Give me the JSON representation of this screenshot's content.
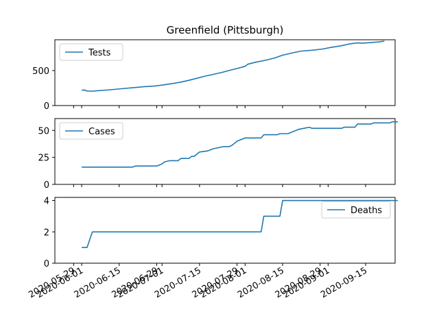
{
  "chart_data": {
    "type": "line",
    "title": "Greenfield (Pittsburgh)",
    "x_axis": {
      "type": "date",
      "range": [
        "2020-05-22",
        "2020-09-26"
      ],
      "tick_labels": [
        "2020-05-29",
        "2020-06-01",
        "2020-06-15",
        "2020-06-29",
        "2020-07-01",
        "2020-07-15",
        "2020-07-29",
        "2020-08-01",
        "2020-08-15",
        "2020-08-29",
        "2020-09-01",
        "2020-09-15"
      ]
    },
    "line_color": "#1f77b4",
    "panels": [
      {
        "ylim": [
          0,
          940
        ],
        "yticks": [
          0,
          500
        ],
        "legend_position": "top-left",
        "series": [
          {
            "name": "Tests",
            "points": [
              [
                "2020-06-01",
                220
              ],
              [
                "2020-06-02",
                222
              ],
              [
                "2020-06-03",
                208
              ],
              [
                "2020-06-05",
                206
              ],
              [
                "2020-06-07",
                212
              ],
              [
                "2020-06-10",
                220
              ],
              [
                "2020-06-13",
                230
              ],
              [
                "2020-06-17",
                245
              ],
              [
                "2020-06-21",
                258
              ],
              [
                "2020-06-24",
                268
              ],
              [
                "2020-06-28",
                278
              ],
              [
                "2020-07-01",
                292
              ],
              [
                "2020-07-05",
                315
              ],
              [
                "2020-07-08",
                335
              ],
              [
                "2020-07-11",
                360
              ],
              [
                "2020-07-14",
                390
              ],
              [
                "2020-07-17",
                420
              ],
              [
                "2020-07-20",
                445
              ],
              [
                "2020-07-23",
                470
              ],
              [
                "2020-07-26",
                500
              ],
              [
                "2020-07-29",
                530
              ],
              [
                "2020-08-01",
                560
              ],
              [
                "2020-08-02",
                590
              ],
              [
                "2020-08-05",
                620
              ],
              [
                "2020-08-09",
                650
              ],
              [
                "2020-08-12",
                680
              ],
              [
                "2020-08-15",
                720
              ],
              [
                "2020-08-19",
                755
              ],
              [
                "2020-08-22",
                778
              ],
              [
                "2020-08-26",
                790
              ],
              [
                "2020-08-30",
                808
              ],
              [
                "2020-09-02",
                830
              ],
              [
                "2020-09-06",
                855
              ],
              [
                "2020-09-09",
                880
              ],
              [
                "2020-09-12",
                895
              ],
              [
                "2020-09-14",
                892
              ],
              [
                "2020-09-17",
                900
              ],
              [
                "2020-09-20",
                910
              ],
              [
                "2020-09-22",
                920
              ]
            ]
          }
        ]
      },
      {
        "ylim": [
          0,
          61
        ],
        "yticks": [
          0,
          25,
          50
        ],
        "legend_position": "top-left",
        "series": [
          {
            "name": "Cases",
            "points": [
              [
                "2020-06-01",
                16
              ],
              [
                "2020-06-20",
                16
              ],
              [
                "2020-06-21",
                17
              ],
              [
                "2020-06-29",
                17
              ],
              [
                "2020-07-01",
                19
              ],
              [
                "2020-07-02",
                21
              ],
              [
                "2020-07-04",
                22
              ],
              [
                "2020-07-07",
                22
              ],
              [
                "2020-07-08",
                24
              ],
              [
                "2020-07-11",
                24
              ],
              [
                "2020-07-12",
                26
              ],
              [
                "2020-07-13",
                26
              ],
              [
                "2020-07-14",
                28
              ],
              [
                "2020-07-15",
                30
              ],
              [
                "2020-07-18",
                31
              ],
              [
                "2020-07-20",
                33
              ],
              [
                "2020-07-22",
                34
              ],
              [
                "2020-07-24",
                35
              ],
              [
                "2020-07-26",
                35
              ],
              [
                "2020-07-27",
                36
              ],
              [
                "2020-07-28",
                38
              ],
              [
                "2020-07-29",
                40
              ],
              [
                "2020-07-31",
                42
              ],
              [
                "2020-08-01",
                43
              ],
              [
                "2020-08-07",
                43
              ],
              [
                "2020-08-08",
                46
              ],
              [
                "2020-08-13",
                46
              ],
              [
                "2020-08-14",
                47
              ],
              [
                "2020-08-17",
                47
              ],
              [
                "2020-08-19",
                49
              ],
              [
                "2020-08-21",
                51
              ],
              [
                "2020-08-23",
                52
              ],
              [
                "2020-08-25",
                53
              ],
              [
                "2020-08-26",
                52
              ],
              [
                "2020-09-06",
                52
              ],
              [
                "2020-09-07",
                53
              ],
              [
                "2020-09-11",
                53
              ],
              [
                "2020-09-12",
                56
              ],
              [
                "2020-09-17",
                56
              ],
              [
                "2020-09-18",
                57
              ],
              [
                "2020-09-24",
                57
              ],
              [
                "2020-09-25",
                58
              ],
              [
                "2020-09-27",
                58
              ]
            ]
          }
        ]
      },
      {
        "ylim": [
          0,
          4.2
        ],
        "yticks": [
          0,
          2,
          4
        ],
        "legend_position": "top-right",
        "series": [
          {
            "name": "Deaths",
            "points": [
              [
                "2020-06-01",
                1
              ],
              [
                "2020-06-02",
                1
              ],
              [
                "2020-06-03",
                1
              ],
              [
                "2020-06-05",
                2
              ],
              [
                "2020-08-07",
                2
              ],
              [
                "2020-08-08",
                3
              ],
              [
                "2020-08-14",
                3
              ],
              [
                "2020-08-15",
                4
              ],
              [
                "2020-09-27",
                4
              ]
            ]
          }
        ]
      }
    ]
  }
}
